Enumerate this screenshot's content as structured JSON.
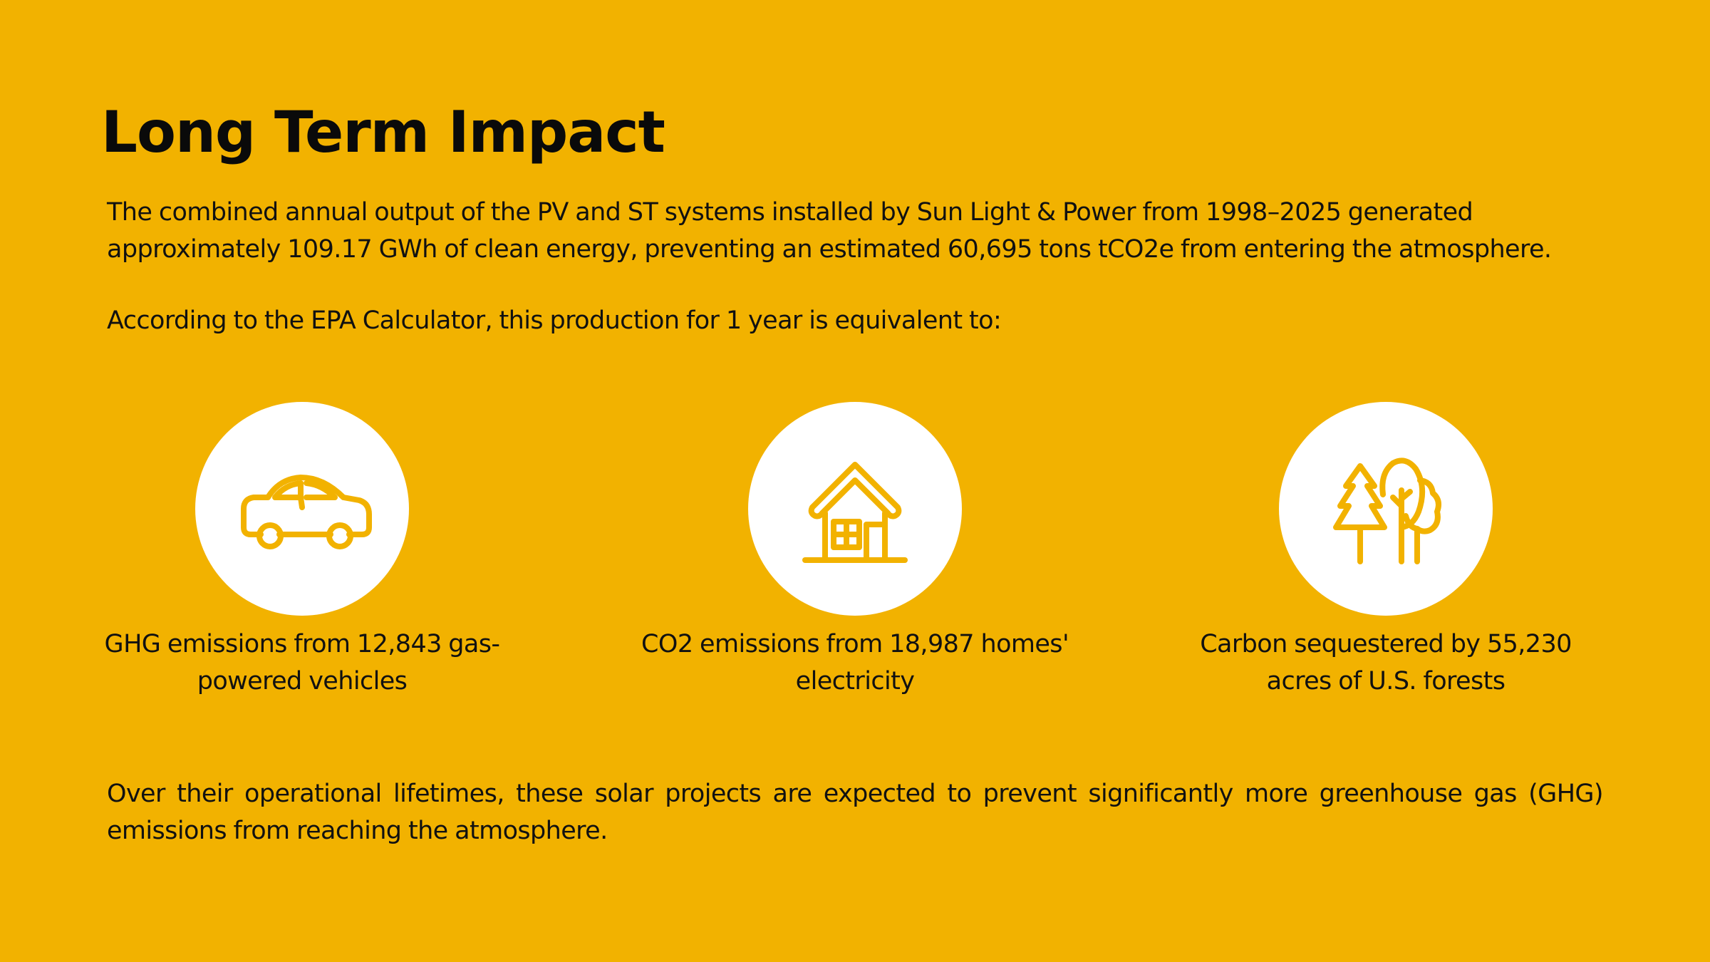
{
  "title": "Long Term Impact",
  "intro": "The combined annual output of the PV and ST systems installed by Sun Light & Power from 1998–2025 generated approximately 109.17 GWh of clean energy, preventing an estimated 60,695 tons tCO2e from entering the atmosphere.",
  "epa_line": "According to the EPA Calculator, this production for 1 year is equivalent to:",
  "stats": [
    {
      "icon": "car-icon",
      "label": "GHG emissions from 12,843 gas-powered vehicles"
    },
    {
      "icon": "house-icon",
      "label": "CO2 emissions from 18,987 homes' electricity"
    },
    {
      "icon": "trees-icon",
      "label": "Carbon sequestered by 55,230 acres of U.S. forests"
    }
  ],
  "outro": "Over their operational lifetimes, these solar projects are expected to prevent significantly more greenhouse gas (GHG) emissions from reaching the atmosphere.",
  "colors": {
    "background": "#F2B200",
    "icon_stroke": "#F2B200",
    "circle": "#FFFFFF",
    "text": "#111111"
  }
}
